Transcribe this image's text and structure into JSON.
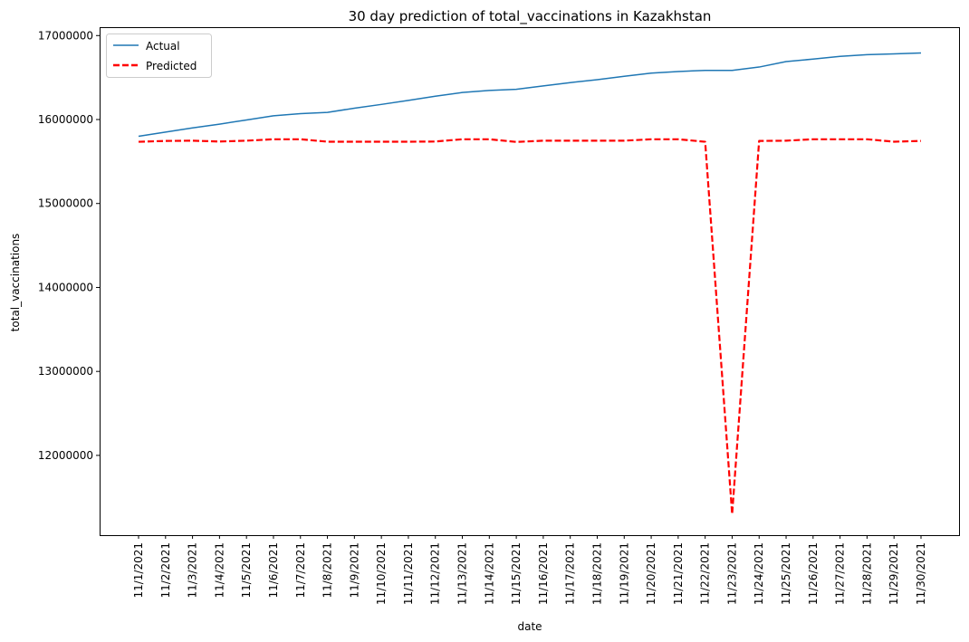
{
  "chart_data": {
    "type": "line",
    "title": "30 day prediction of total_vaccinations in Kazakhstan",
    "xlabel": "date",
    "ylabel": "total_vaccinations",
    "categories": [
      "11/1/2021",
      "11/2/2021",
      "11/3/2021",
      "11/4/2021",
      "11/5/2021",
      "11/6/2021",
      "11/7/2021",
      "11/8/2021",
      "11/9/2021",
      "11/10/2021",
      "11/11/2021",
      "11/12/2021",
      "11/13/2021",
      "11/14/2021",
      "11/15/2021",
      "11/16/2021",
      "11/17/2021",
      "11/18/2021",
      "11/19/2021",
      "11/20/2021",
      "11/21/2021",
      "11/22/2021",
      "11/23/2021",
      "11/24/2021",
      "11/25/2021",
      "11/26/2021",
      "11/27/2021",
      "11/28/2021",
      "11/29/2021",
      "11/30/2021"
    ],
    "yticks": [
      12000000,
      13000000,
      14000000,
      15000000,
      16000000,
      17000000
    ],
    "ylim": [
      11050000,
      17100000
    ],
    "legend_position": "top-left",
    "grid": false,
    "series": [
      {
        "name": "Actual",
        "color": "#1f77b4",
        "style": "solid",
        "values": [
          15800000,
          15850000,
          15900000,
          15945000,
          15995000,
          16045000,
          16070000,
          16085000,
          16135000,
          16180000,
          16228000,
          16278000,
          16322000,
          16347000,
          16360000,
          16400000,
          16440000,
          16475000,
          16515000,
          16553000,
          16572000,
          16585000,
          16585000,
          16625000,
          16690000,
          16720000,
          16752000,
          16772000,
          16782000,
          16792000
        ]
      },
      {
        "name": "Predicted",
        "color": "#ff0000",
        "style": "dashed",
        "values": [
          15735000,
          15745000,
          15748000,
          15738000,
          15748000,
          15765000,
          15765000,
          15736000,
          15736000,
          15736000,
          15736000,
          15738000,
          15765000,
          15765000,
          15733000,
          15748000,
          15748000,
          15748000,
          15748000,
          15765000,
          15765000,
          15735000,
          11300000,
          15745000,
          15748000,
          15765000,
          15765000,
          15765000,
          15736000,
          15745000
        ]
      }
    ]
  }
}
